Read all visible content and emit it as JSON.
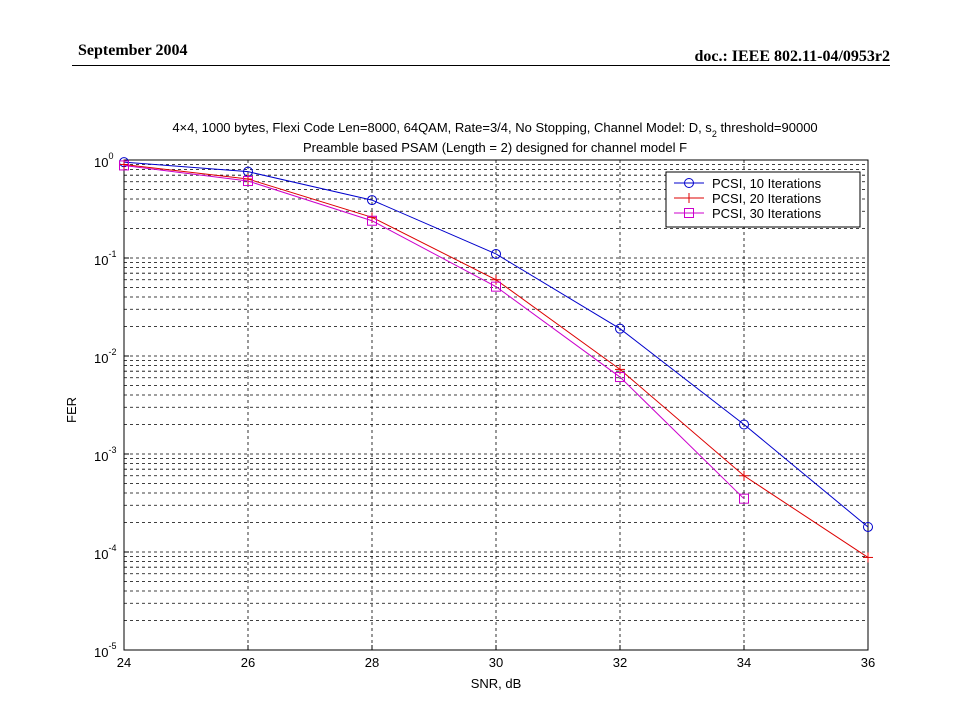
{
  "header": {
    "date": "September 2004",
    "doc_id": "doc.: IEEE 802.11-04/0953r2"
  },
  "chart_data": {
    "type": "line",
    "title_line1": "4×4, 1000 bytes, Flexi Code Len=8000, 64QAM, Rate=3/4, No Stopping, Channel Model: D, s",
    "title_sub": "2",
    "title_line1_end": " threshold=90000",
    "title_line2": "Preamble based PSAM (Length = 2) designed for channel model F",
    "xlabel": "SNR, dB",
    "ylabel": "FER",
    "xlim": [
      24,
      36
    ],
    "ylim": [
      1e-05,
      1
    ],
    "yscale": "log",
    "grid": true,
    "legend_position": "top-right",
    "x_ticks": [
      "24",
      "26",
      "28",
      "30",
      "32",
      "34",
      "36"
    ],
    "y_ticks": [
      {
        "base": "10",
        "exp": "0"
      },
      {
        "base": "10",
        "exp": "-1"
      },
      {
        "base": "10",
        "exp": "-2"
      },
      {
        "base": "10",
        "exp": "-3"
      },
      {
        "base": "10",
        "exp": "-4"
      },
      {
        "base": "10",
        "exp": "-5"
      }
    ],
    "series": [
      {
        "name": "PCSI, 10 Iterations",
        "color": "#0000cc",
        "marker": "circle",
        "x": [
          24,
          26,
          28,
          30,
          32,
          34,
          36
        ],
        "y": [
          0.95,
          0.76,
          0.39,
          0.11,
          0.019,
          0.002,
          0.00018
        ]
      },
      {
        "name": "PCSI, 20 Iterations",
        "color": "#dd0000",
        "marker": "plus",
        "x": [
          24,
          26,
          28,
          30,
          32,
          34,
          36
        ],
        "y": [
          0.9,
          0.64,
          0.26,
          0.06,
          0.0073,
          0.0006,
          8.8e-05
        ]
      },
      {
        "name": "PCSI, 30 Iterations",
        "color": "#cc00cc",
        "marker": "square",
        "x": [
          24,
          26,
          28,
          30,
          32,
          34
        ],
        "y": [
          0.88,
          0.61,
          0.24,
          0.051,
          0.0061,
          0.00035
        ]
      }
    ]
  }
}
